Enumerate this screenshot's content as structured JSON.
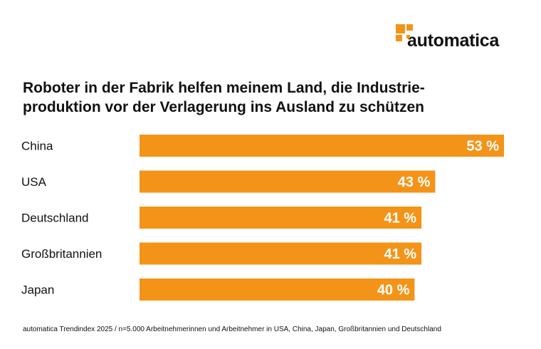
{
  "brand": {
    "name": "automatica",
    "color": "#f39419"
  },
  "title_lines": [
    "Roboter in der Fabrik helfen meinem Land, die Industrie-",
    "produktion vor der Verlagerung ins Ausland zu schützen"
  ],
  "footnote": "automatica Trendindex 2025 / n=5.000 Arbeitnehmerinnen und Arbeitnehmer in USA, China, Japan, Großbritannien und Deutschland",
  "chart_data": {
    "type": "bar",
    "orientation": "horizontal",
    "title": "Roboter in der Fabrik helfen meinem Land, die Industrieproduktion vor der Verlagerung ins Ausland zu schützen",
    "categories": [
      "China",
      "USA",
      "Deutschland",
      "Großbritannien",
      "Japan"
    ],
    "values": [
      53,
      43,
      41,
      41,
      40
    ],
    "value_labels": [
      "53 %",
      "43 %",
      "41 %",
      "41 %",
      "40 %"
    ],
    "unit": "%",
    "xlim": [
      0,
      53
    ],
    "bar_color": "#f39419",
    "label_color": "#ffffff",
    "grid": false,
    "legend": "none"
  }
}
